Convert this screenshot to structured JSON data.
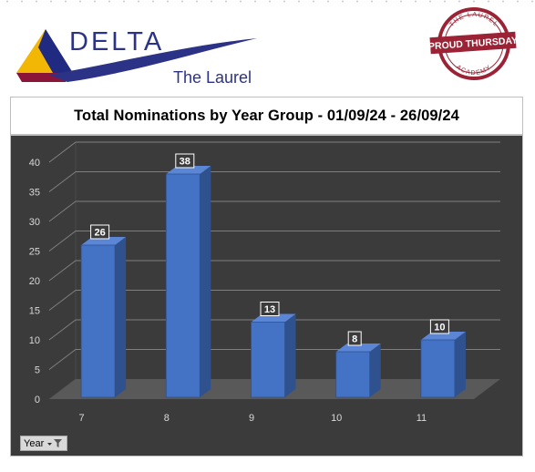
{
  "header": {
    "brand_name": "DELTA",
    "brand_sub": "The Laurel",
    "badge": {
      "top_text": "THE LAUREL",
      "banner_text": "PROUD THURSDAY",
      "bottom_text": "ACADEMY",
      "color": "#9b2335"
    }
  },
  "filter": {
    "label": "Year"
  },
  "colors": {
    "bar": "#4472c4",
    "bar_top": "#5b86d6",
    "bar_side": "#2f528f",
    "plot_background": "#3b3b3b",
    "gridline": "#7f7f7f",
    "floor": "#595959"
  },
  "chart_data": {
    "type": "bar",
    "title": "Total Nominations by Year Group - 01/09/24 - 26/09/24",
    "xlabel": "",
    "ylabel": "",
    "categories": [
      "7",
      "8",
      "9",
      "10",
      "11"
    ],
    "values": [
      26,
      38,
      13,
      8,
      10
    ],
    "data_labels": [
      "26",
      "38",
      "13",
      "8",
      "10"
    ],
    "y_ticks": [
      "0",
      "5",
      "10",
      "15",
      "20",
      "25",
      "30",
      "35",
      "40"
    ],
    "ylim": [
      0,
      40
    ],
    "grid": true,
    "legend": "none",
    "style": "3d-column"
  }
}
